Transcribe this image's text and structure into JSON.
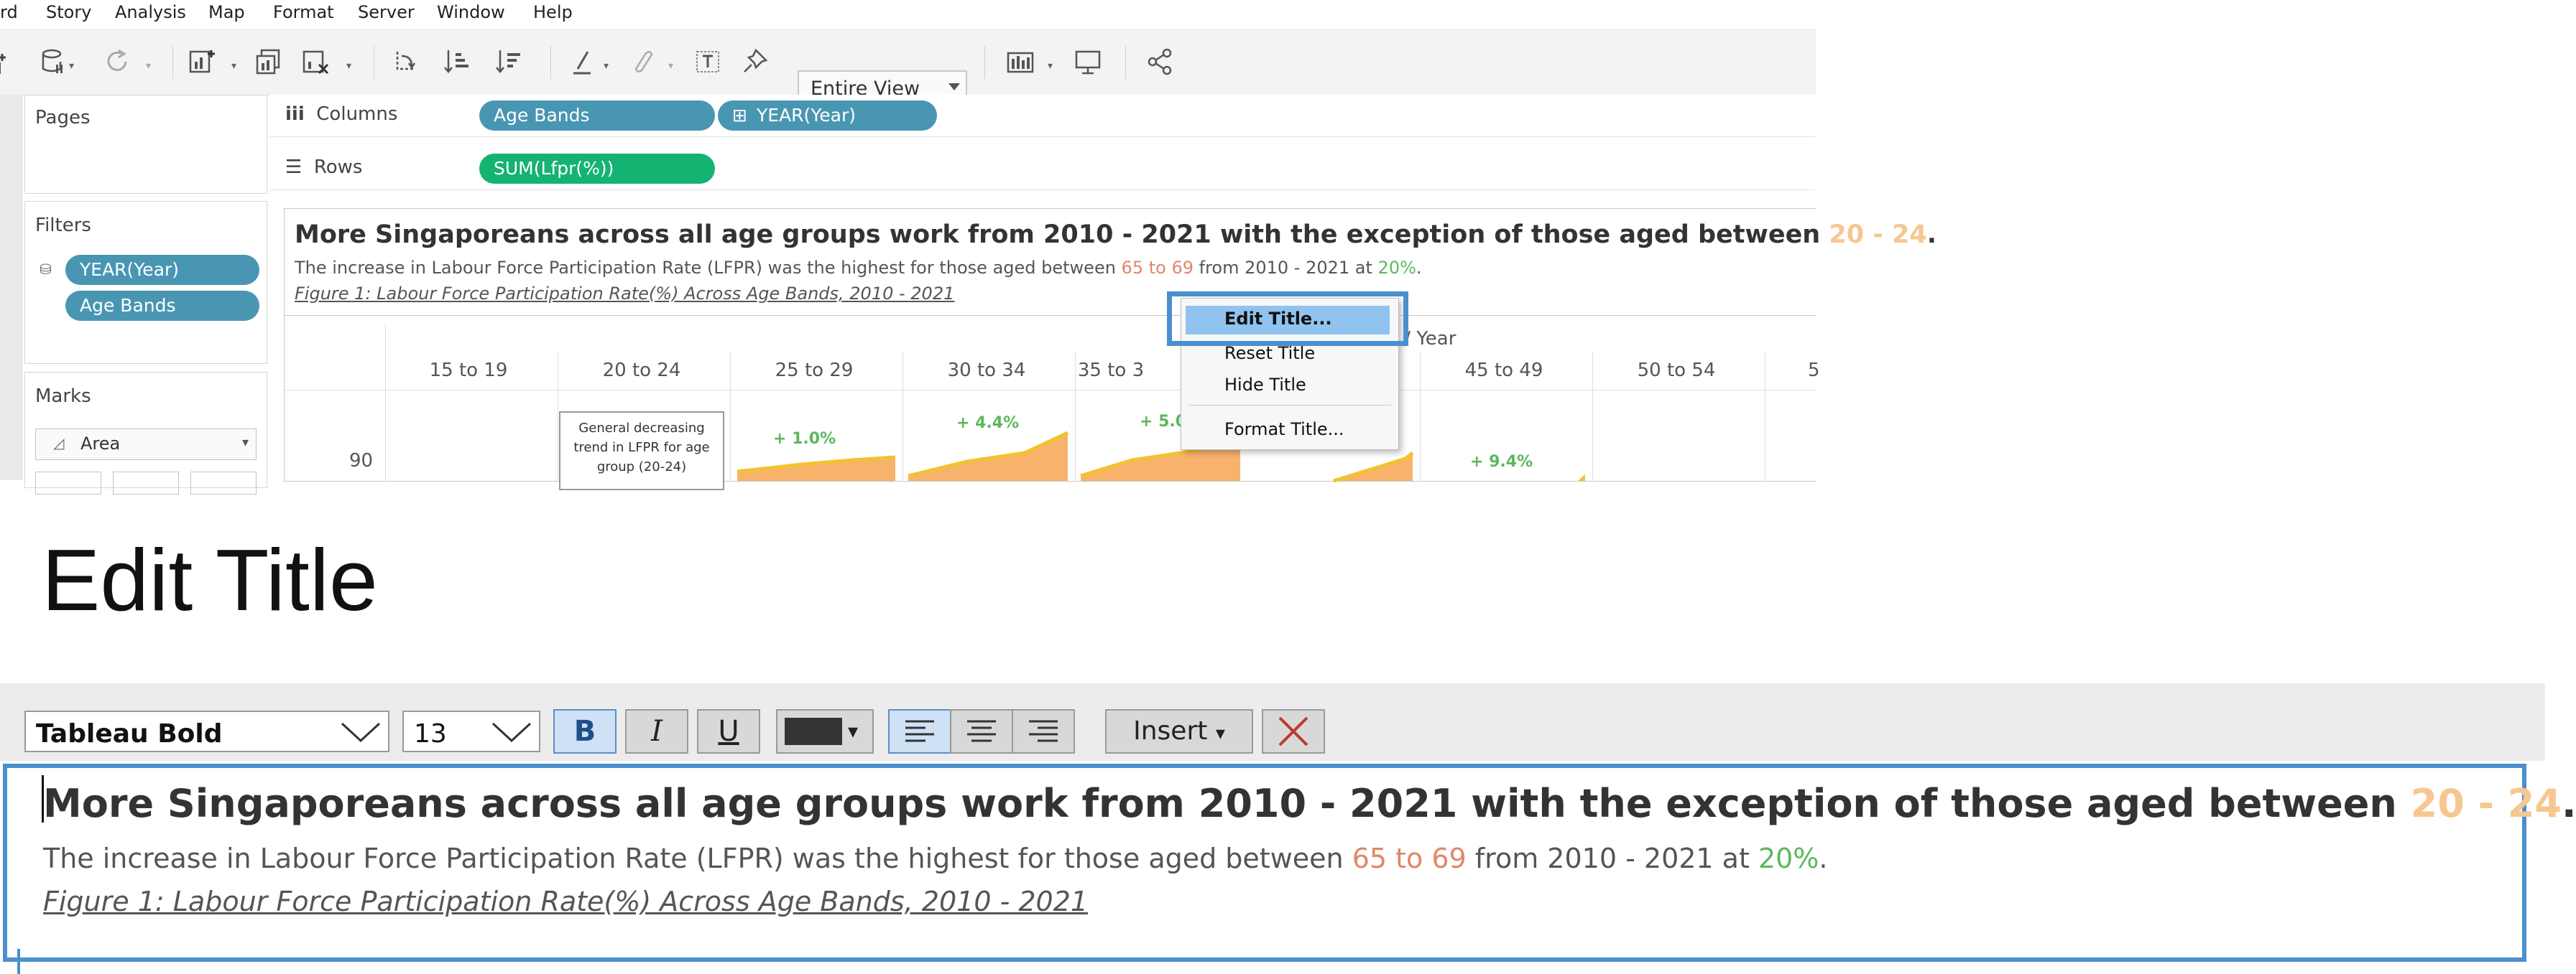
{
  "menubar": {
    "items": [
      "rd",
      "Story",
      "Analysis",
      "Map",
      "Format",
      "Server",
      "Window",
      "Help"
    ]
  },
  "toolbar": {
    "view_select": "Entire View",
    "icons": [
      "new-datasource-icon",
      "pause-updates-icon",
      "refresh-icon",
      "new-worksheet-icon",
      "duplicate-icon",
      "clear-icon",
      "swap-icon",
      "sort-ascending-icon",
      "sort-descending-icon",
      "highlight-icon",
      "group-icon",
      "labels-icon",
      "pin-icon",
      "show-me-icon",
      "presentation-icon",
      "share-icon"
    ]
  },
  "panels": {
    "pages_title": "Pages",
    "filters_title": "Filters",
    "filters": [
      "YEAR(Year)",
      "Age Bands"
    ],
    "marks_title": "Marks",
    "marks_type": "Area"
  },
  "shelves": {
    "columns_label": "Columns",
    "rows_label": "Rows",
    "columns_pills": [
      "Age Bands",
      "YEAR(Year)"
    ],
    "rows_pills": [
      "SUM(Lfpr(%))"
    ]
  },
  "view_title": {
    "line1_a": "More Singaporeans across all age groups work from 2010 - 2021 with the exception of those aged between ",
    "line1_highlight": "20 - 24",
    "line1_end": ".",
    "line2_a": "The increase in Labour Force Participation Rate (LFPR) was the highest for those aged between ",
    "line2_highlight1": "65 to 69",
    "line2_b": " from 2010 - 2021 at ",
    "line2_highlight2": "20%",
    "line2_end": ".",
    "line3": "Figure 1: Labour Force Participation Rate(%) Across Age Bands, 2010 - 2021"
  },
  "chart": {
    "header_caption": "ds / Year",
    "columns": [
      "15 to 19",
      "20 to 24",
      "25 to 29",
      "30 to 34",
      "35 to 3",
      "",
      "45 to 49",
      "50 to 54",
      "5"
    ],
    "y_tick": "90",
    "annotation": "General decreasing trend in LFPR for age group (20-24)",
    "labels": [
      "+ 1.0%",
      "+ 4.4%",
      "+ 5.0%",
      "+ 9.4%"
    ]
  },
  "context_menu": {
    "items": [
      "Edit Title...",
      "Reset Title",
      "Hide Title",
      "Format Title..."
    ]
  },
  "heading": "Edit Title",
  "editor": {
    "font": "Tableau Bold",
    "size": "13",
    "bold": "B",
    "italic": "I",
    "underline": "U",
    "insert": "Insert",
    "align_left_active": true
  },
  "colors": {
    "pill_blue": "#4996b2",
    "pill_green": "#14b371",
    "highlight_orange": "#f6c791",
    "highlight_salmon": "#e0876a",
    "highlight_green": "#5cb85c",
    "area_fill": "#f7b26b",
    "area_line": "#f2c230",
    "selection_blue": "#4b8fcc"
  }
}
